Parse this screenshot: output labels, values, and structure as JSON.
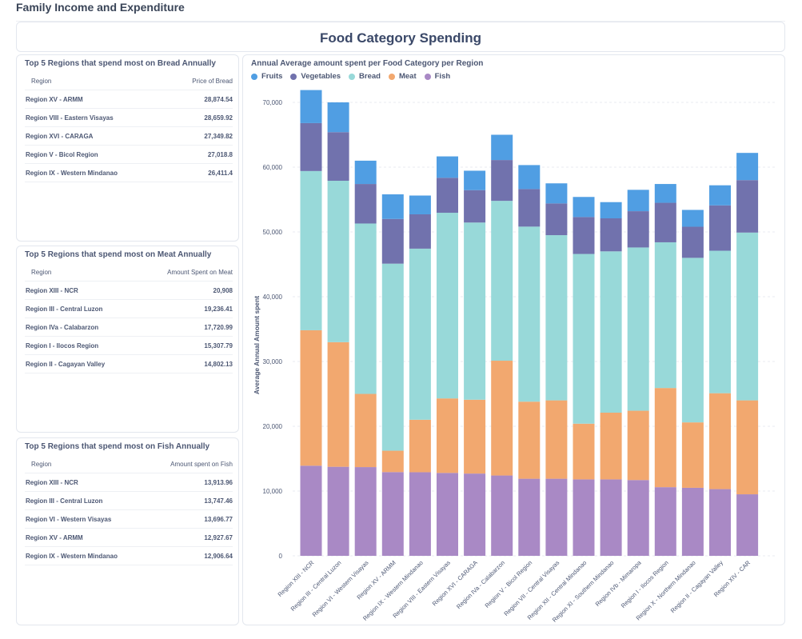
{
  "page": {
    "title": "Family Income and Expenditure"
  },
  "heading": "Food Category Spending",
  "tables": {
    "bread": {
      "title": "Top 5 Regions that spend most on Bread Annually",
      "columns": [
        "Region",
        "Price of Bread"
      ],
      "rows": [
        [
          "Region XV - ARMM",
          "28,874.54"
        ],
        [
          "Region VIII - Eastern Visayas",
          "28,659.92"
        ],
        [
          "Region XVI - CARAGA",
          "27,349.82"
        ],
        [
          "Region V - Bicol Region",
          "27,018.8"
        ],
        [
          "Region IX - Western Mindanao",
          "26,411.4"
        ]
      ]
    },
    "meat": {
      "title": "Top 5 Regions that spend most on Meat Annually",
      "columns": [
        "Region",
        "Amount Spent on Meat"
      ],
      "rows": [
        [
          "Region XIII - NCR",
          "20,908"
        ],
        [
          "Region III - Central Luzon",
          "19,236.41"
        ],
        [
          "Region IVa - Calabarzon",
          "17,720.99"
        ],
        [
          "Region I - Ilocos Region",
          "15,307.79"
        ],
        [
          "Region II - Cagayan Valley",
          "14,802.13"
        ]
      ]
    },
    "fish": {
      "title": "Top 5 Regions that spend most on Fish Annually",
      "columns": [
        "Region",
        "Amount spent on Fish"
      ],
      "rows": [
        [
          "Region XIII - NCR",
          "13,913.96"
        ],
        [
          "Region III - Central Luzon",
          "13,747.46"
        ],
        [
          "Region VI - Western Visayas",
          "13,696.77"
        ],
        [
          "Region XV - ARMM",
          "12,927.67"
        ],
        [
          "Region IX - Western Mindanao",
          "12,906.64"
        ]
      ]
    }
  },
  "chart_data": {
    "type": "bar",
    "stacked": true,
    "title": "Annual Average amount spent per Food Category per Region",
    "xlabel": "",
    "ylabel": "Average Annual Amount spent",
    "ylim": [
      0,
      70000
    ],
    "yticks": [
      0,
      10000,
      20000,
      30000,
      40000,
      50000,
      60000,
      70000
    ],
    "ytick_labels": [
      "0",
      "10,000",
      "20,000",
      "30,000",
      "40,000",
      "50,000",
      "60,000",
      "70,000"
    ],
    "grid": true,
    "legend_position": "top-left",
    "legend_order": [
      "Fruits",
      "Vegetables",
      "Bread",
      "Meat",
      "Fish"
    ],
    "categories": [
      "Region XIII - NCR",
      "Region III - Central Luzon",
      "Region VI - Western Visayas",
      "Region XV - ARMM",
      "Region IX - Western Mindanao",
      "Region VIII - Eastern Visayas",
      "Region XVI - CARAGA",
      "Region IVa - Calabarzon",
      "Region V - Bicol Region",
      "Region VII - Central Visayas",
      "Region XII - Central Mindanao",
      "Region XI - Southern Mindanao",
      "Region IVb - Mimaropa",
      "Region I - Ilocos Region",
      "Region X - Northern Mindanao",
      "Region II - Cagayan Valley",
      "Region XIV - CAR"
    ],
    "series": [
      {
        "name": "Fish",
        "color": "#a989c5",
        "values": [
          13914,
          13747,
          13697,
          12928,
          12907,
          12800,
          12700,
          12400,
          11900,
          11900,
          11800,
          11800,
          11700,
          10600,
          10500,
          10300,
          9500
        ]
      },
      {
        "name": "Meat",
        "color": "#f2a86f",
        "values": [
          20908,
          19236,
          11300,
          3300,
          8100,
          11500,
          11400,
          17721,
          11900,
          12100,
          8600,
          10300,
          10700,
          15308,
          10100,
          14802,
          14500
        ]
      },
      {
        "name": "Bread",
        "color": "#98d9d9",
        "values": [
          24578,
          24917,
          26303,
          28875,
          26411,
          28660,
          27350,
          24679,
          27019,
          25500,
          26200,
          24900,
          25200,
          22492,
          25400,
          21998,
          25900
        ]
      },
      {
        "name": "Vegetables",
        "color": "#7172ad",
        "values": [
          7400,
          7500,
          6100,
          6900,
          5300,
          5400,
          5000,
          6300,
          5800,
          4900,
          5700,
          5100,
          5600,
          6100,
          4800,
          7000,
          8100
        ]
      },
      {
        "name": "Fruits",
        "color": "#509ee3",
        "values": [
          5100,
          4600,
          3600,
          3800,
          2900,
          3300,
          3000,
          3900,
          3700,
          3100,
          3100,
          2500,
          3300,
          2900,
          2600,
          3100,
          4200
        ]
      }
    ]
  }
}
